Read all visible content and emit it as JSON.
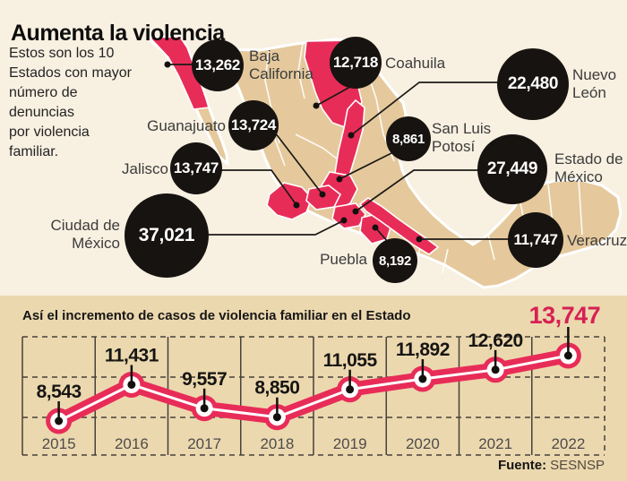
{
  "title": "Aumenta la violencia",
  "subtitle_lines": [
    "Estos son los 10",
    "Estados con mayor",
    "número de",
    "denuncias",
    "por violencia",
    "familiar."
  ],
  "map": {
    "states": [
      {
        "name": "Baja California",
        "value": "13,262"
      },
      {
        "name": "Coahuila",
        "value": "12,718"
      },
      {
        "name": "Nuevo León",
        "value": "22,480"
      },
      {
        "name": "Guanajuato",
        "value": "13,724"
      },
      {
        "name": "San Luis Potosí",
        "value": "8,861"
      },
      {
        "name": "Jalisco",
        "value": "13,747"
      },
      {
        "name": "Estado de México",
        "value": "27,449"
      },
      {
        "name": "Ciudad de México",
        "value": "37,021"
      },
      {
        "name": "Puebla",
        "value": "8,192"
      },
      {
        "name": "Veracruz",
        "value": "11,747"
      }
    ]
  },
  "chart": {
    "title": "Así el incremento de casos de violencia familiar en el Estado",
    "source_label": "Fuente:",
    "source_value": "SESNSP"
  },
  "chart_data": {
    "type": "line",
    "title": "Así el incremento de casos de violencia familiar en el Estado",
    "categories": [
      "2015",
      "2016",
      "2017",
      "2018",
      "2019",
      "2020",
      "2021",
      "2022"
    ],
    "values": [
      8543,
      11431,
      9557,
      8850,
      11055,
      11892,
      12620,
      13747
    ],
    "labels": [
      "8,543",
      "11,431",
      "9,557",
      "8,850",
      "11,055",
      "11,892",
      "12,620",
      "13,747"
    ],
    "highlight_last": true,
    "grid": "dashed horizontal, solid vertical column separators",
    "legend": "none",
    "source": "SESNSP"
  },
  "colors": {
    "background_top": "#f8f0e1",
    "background_panel": "#ecd8ae",
    "map_land": "#e5c99c",
    "map_highlight": "#e82c58",
    "line_band": "#e82c58",
    "highlight_number": "#d62154",
    "bubble_fill": "#171310",
    "grid_line": "#46413b"
  }
}
